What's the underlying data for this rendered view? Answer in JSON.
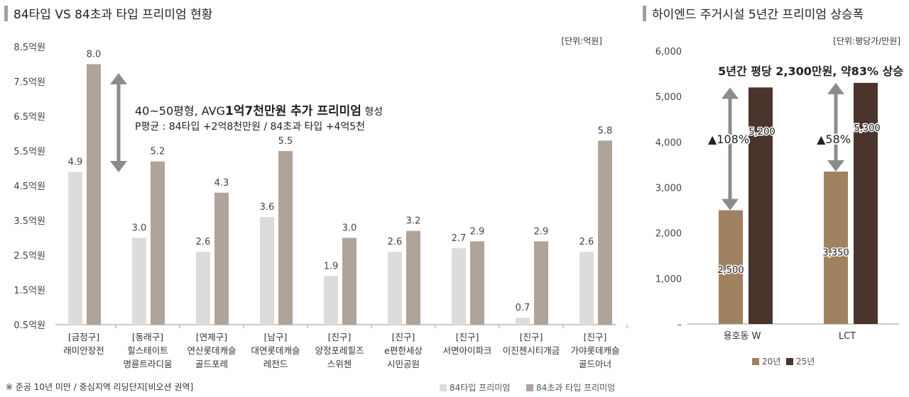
{
  "left": {
    "title": "84타입 VS 84초과 타입 프리미엄 현황",
    "unit": "[단위:억원]",
    "yticks": [
      "0.5억원",
      "1.5억원",
      "2.5억원",
      "3.5억원",
      "4.5억원",
      "5.5억원",
      "6.5억원",
      "7.5억원",
      "8.5억원"
    ],
    "annotation_line1_a": "40~50평형, AVG",
    "annotation_line1_b": "1억7천만원 추가 프리미엄",
    "annotation_line1_c": " 형성",
    "annotation_line2": "P평균 : 84타입 +2억8천만원 / 84초과 타입 +4억5천",
    "footnote": "※ 준공 10년 미만 / 중심지역 리딩단지[비오션 권역]",
    "legend": [
      "84타입 프리미엄",
      "84초과 타입 프리미엄"
    ],
    "colors": {
      "s84": "#dcdcdc",
      "sOver": "#b0a39c",
      "axis": "#999999"
    }
  },
  "right": {
    "title": "하이엔드 주거시설 5년간 프리미엄 상승폭",
    "unit": "[단위:평당가/만원]",
    "headline": "5년간 평당 2,300만원, 약83% 상승",
    "yticks": [
      "–",
      "1,000",
      "2,000",
      "3,000",
      "4,000",
      "5,000",
      "6,000"
    ],
    "annotations": [
      "▲108%",
      "▲58%"
    ],
    "legend": [
      "20년",
      "25년"
    ],
    "colors": {
      "y20": "#a08160",
      "y25": "#4a342b"
    }
  },
  "chart_data": [
    {
      "type": "bar",
      "title": "84타입 VS 84초과 타입 프리미엄 현황",
      "unit": "[단위:억원]",
      "categories": [
        [
          "[금정구]",
          "래미안장전"
        ],
        [
          "[동래구]",
          "힐스테이트",
          "명륜트라디움"
        ],
        [
          "[연제구]",
          "연산롯데캐슬",
          "골드포레"
        ],
        [
          "[남구]",
          "대연롯데캐슬",
          "레전드"
        ],
        [
          "[진구]",
          "양정포레힐즈",
          "스위첸"
        ],
        [
          "[진구]",
          "e편한세상",
          "시민공원"
        ],
        [
          "[진구]",
          "서면아이파크"
        ],
        [
          "[진구]",
          "이진젠시티개금"
        ],
        [
          "[진구]",
          "가야롯데캐슬",
          "골드아너"
        ]
      ],
      "series": [
        {
          "name": "84타입 프리미엄",
          "values": [
            4.9,
            3.0,
            2.6,
            3.6,
            1.9,
            2.6,
            2.7,
            0.7,
            2.6
          ],
          "labels": [
            "4.9",
            "3.0",
            "2.6",
            "3.6",
            "1.9",
            "2.6",
            "2.7",
            "0.7",
            "2.6"
          ]
        },
        {
          "name": "84초과 타입 프리미엄",
          "values": [
            8.0,
            5.2,
            4.3,
            5.5,
            3.0,
            3.2,
            2.9,
            2.9,
            5.8
          ],
          "labels": [
            "8.0",
            "5.2",
            "4.3",
            "5.5",
            "3.0",
            "3.2",
            "2.9",
            "2.9",
            "5.8"
          ]
        }
      ],
      "ylim": [
        0.5,
        8.5
      ],
      "legend_position": "bottom-right"
    },
    {
      "type": "bar",
      "title": "하이엔드 주거시설 5년간 프리미엄 상승폭",
      "unit": "[단위:평당가/만원]",
      "categories": [
        "용호동 W",
        "LCT"
      ],
      "series": [
        {
          "name": "20년",
          "values": [
            2500,
            3350
          ],
          "labels": [
            "2,500",
            "3,350"
          ]
        },
        {
          "name": "25년",
          "values": [
            5200,
            5300
          ],
          "labels": [
            "5,200",
            "5,300"
          ]
        }
      ],
      "ylim": [
        0,
        6000
      ],
      "legend_position": "bottom-center"
    }
  ]
}
